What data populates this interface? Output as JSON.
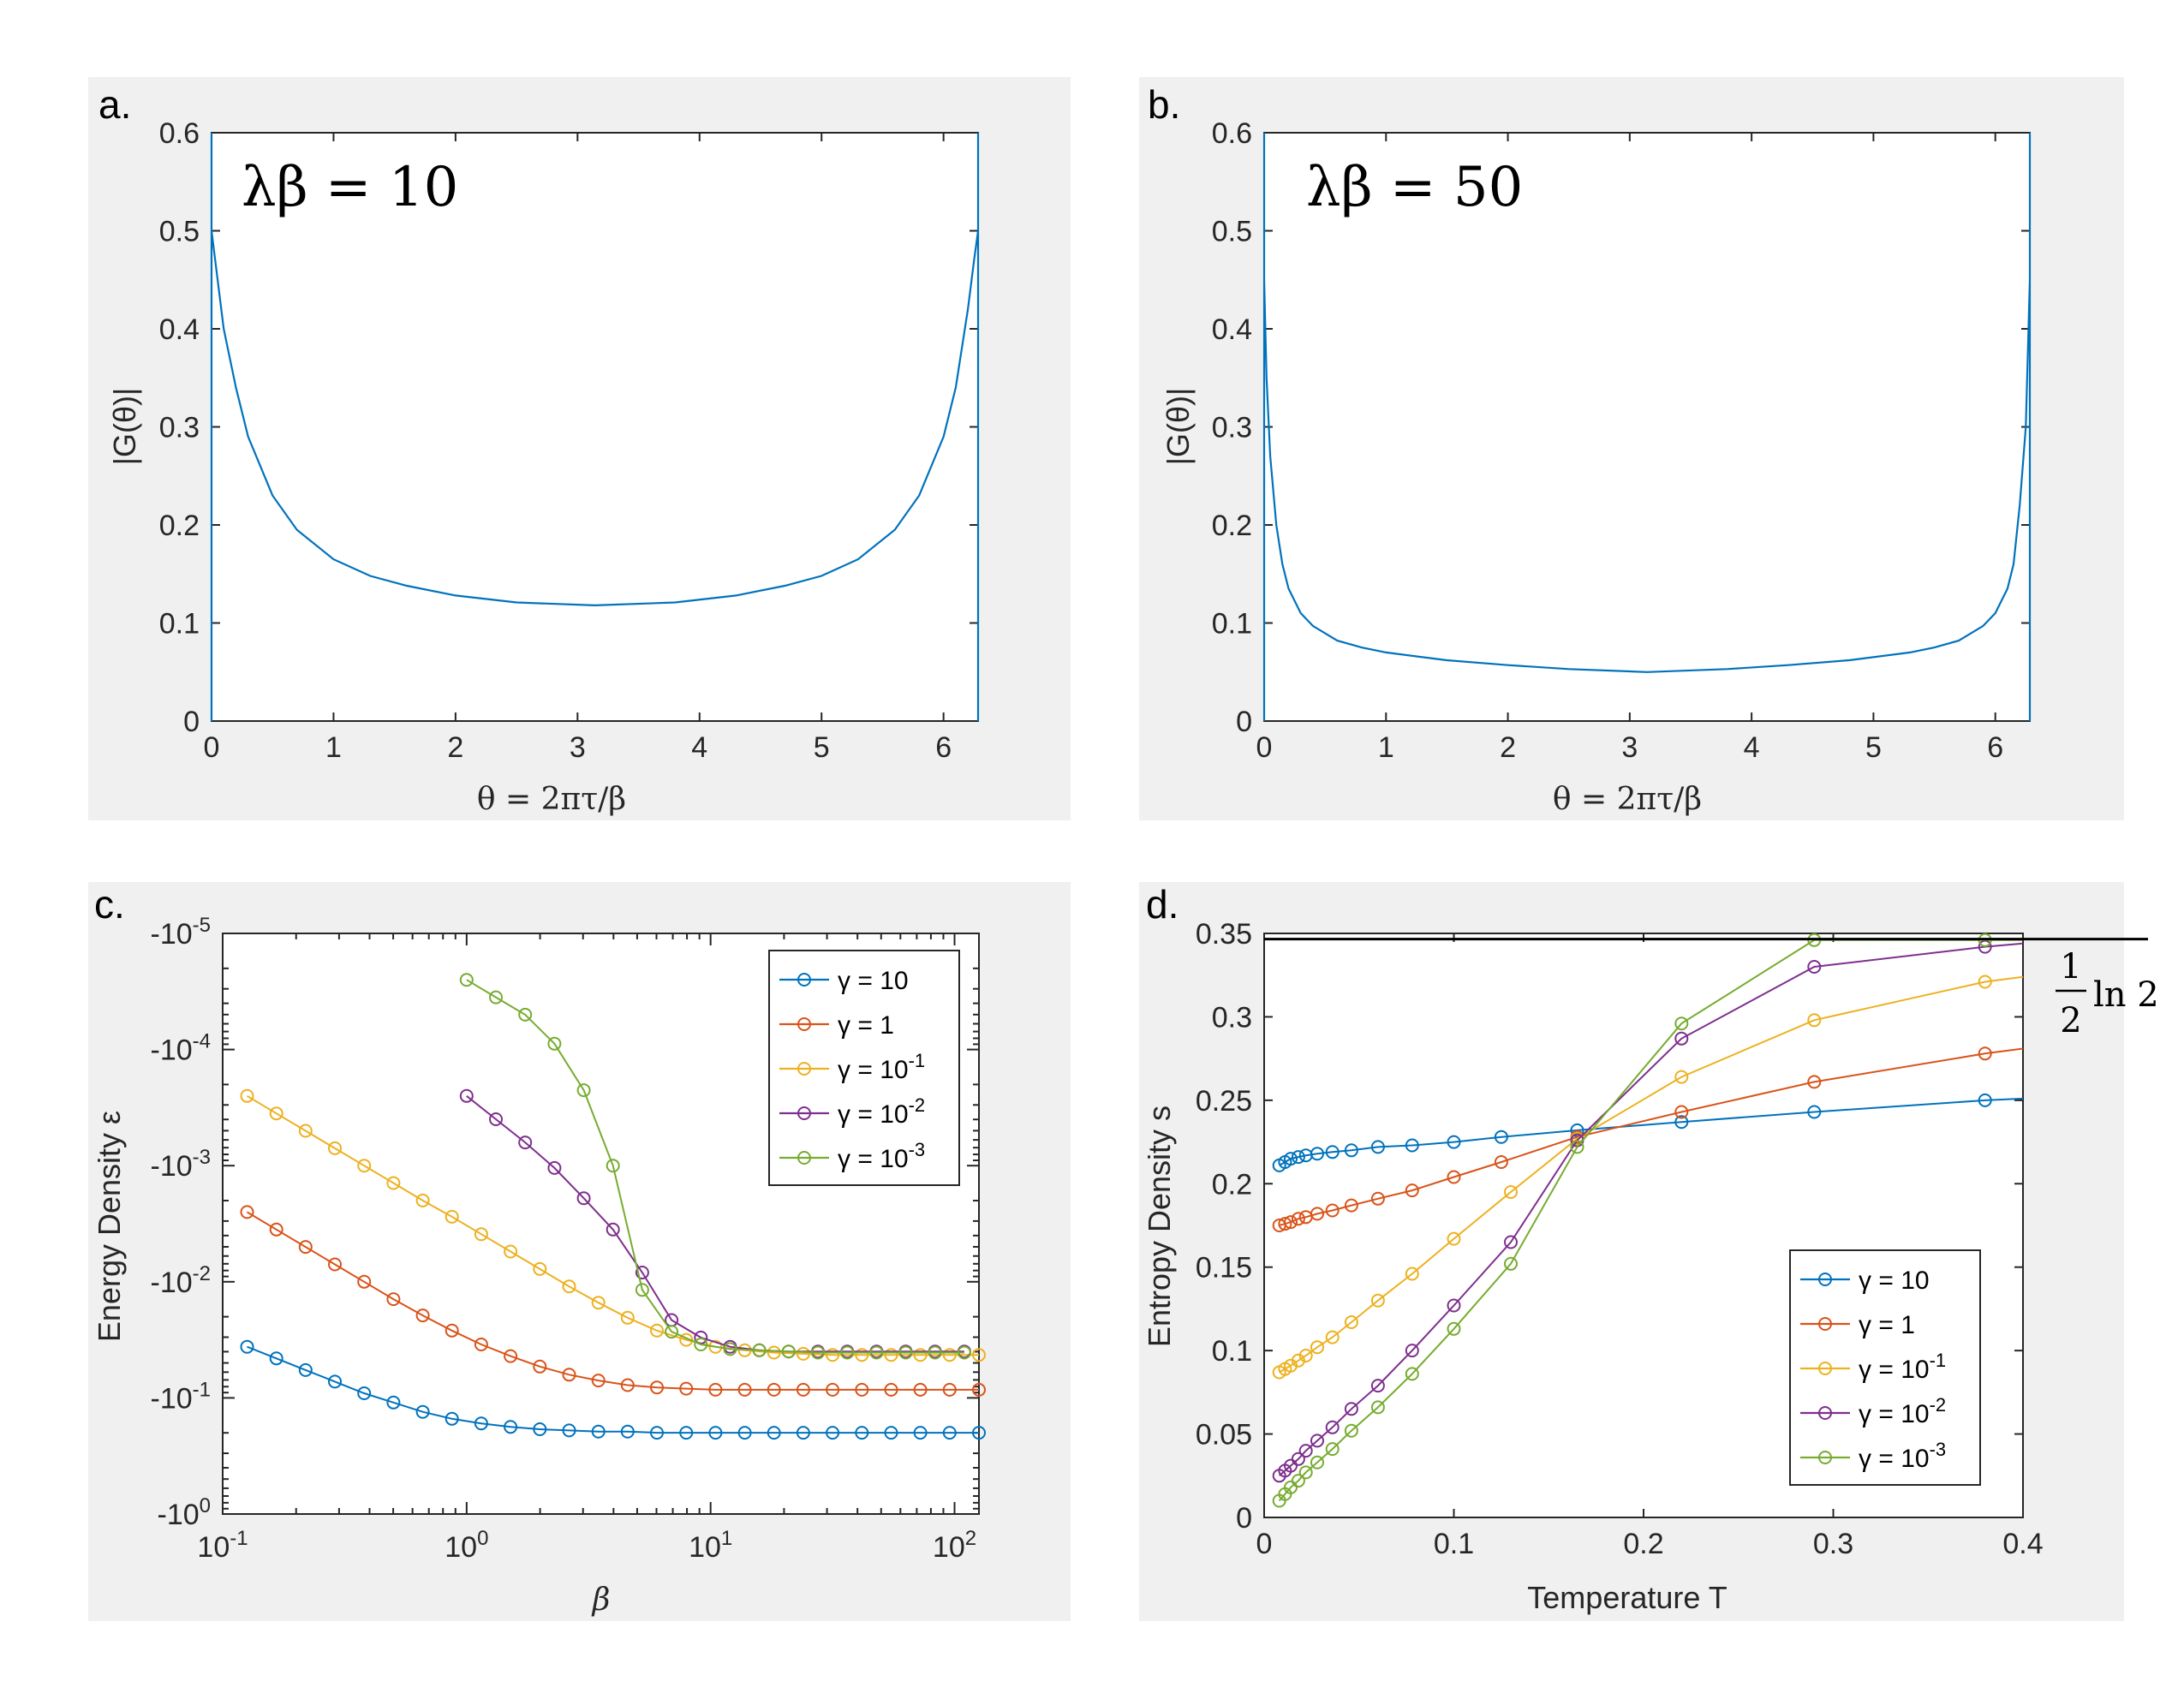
{
  "panels": {
    "a": {
      "label": "a.",
      "annotation": "λβ = 10",
      "ylabel": "|G(θ)|",
      "xlabel": "θ = 2πτ/β"
    },
    "b": {
      "label": "b.",
      "annotation": "λβ = 50",
      "ylabel": "|G(θ)|",
      "xlabel": "θ = 2πτ/β"
    },
    "c": {
      "label": "c.",
      "ylabel": "Energy Density ε",
      "xlabel": "β"
    },
    "d": {
      "label": "d.",
      "ylabel": "Entropy Density s",
      "xlabel": "Temperature T",
      "hline_label_num": "1",
      "hline_label_den": "2",
      "hline_label_fn": "ln 2"
    }
  },
  "colors": {
    "blue": "#0072bd",
    "orange": "#d95319",
    "yellow": "#edb120",
    "purple": "#7e2f8e",
    "green": "#77ac30",
    "axis": "#262626",
    "bg": "#f0f0f0"
  },
  "chart_data": [
    {
      "id": "a",
      "type": "line",
      "title": "λβ = 10",
      "xlabel": "θ = 2πτ/β",
      "ylabel": "|G(θ)|",
      "xlim": [
        0,
        6.2832
      ],
      "ylim": [
        0,
        0.6
      ],
      "xticks": [
        0,
        1,
        2,
        3,
        4,
        5,
        6
      ],
      "yticks": [
        0,
        0.1,
        0.2,
        0.3,
        0.4,
        0.5,
        0.6
      ],
      "xtick_labels": [
        "0",
        "1",
        "2",
        "3",
        "4",
        "5",
        "6"
      ],
      "ytick_labels": [
        "0",
        "0.1",
        "0.2",
        "0.3",
        "0.4",
        "0.5",
        "0.6"
      ],
      "series": [
        {
          "name": "|G(θ)|",
          "color": "#0072bd",
          "x": [
            0,
            0.05,
            0.1,
            0.2,
            0.3,
            0.5,
            0.7,
            1.0,
            1.3,
            1.6,
            2.0,
            2.5,
            3.1416,
            3.8,
            4.3,
            4.7,
            5.0,
            5.3,
            5.6,
            5.8,
            6.0,
            6.1,
            6.2,
            6.25,
            6.2832
          ],
          "y": [
            0.5,
            0.45,
            0.4,
            0.34,
            0.29,
            0.23,
            0.195,
            0.165,
            0.148,
            0.138,
            0.128,
            0.121,
            0.118,
            0.121,
            0.128,
            0.138,
            0.148,
            0.165,
            0.195,
            0.23,
            0.29,
            0.34,
            0.42,
            0.47,
            0.5
          ]
        }
      ]
    },
    {
      "id": "b",
      "type": "line",
      "title": "λβ = 50",
      "xlabel": "θ = 2πτ/β",
      "ylabel": "|G(θ)|",
      "xlim": [
        0,
        6.2832
      ],
      "ylim": [
        0,
        0.6
      ],
      "xticks": [
        0,
        1,
        2,
        3,
        4,
        5,
        6
      ],
      "yticks": [
        0,
        0.1,
        0.2,
        0.3,
        0.4,
        0.5,
        0.6
      ],
      "xtick_labels": [
        "0",
        "1",
        "2",
        "3",
        "4",
        "5",
        "6"
      ],
      "ytick_labels": [
        "0",
        "0.1",
        "0.2",
        "0.3",
        "0.4",
        "0.5",
        "0.6"
      ],
      "series": [
        {
          "name": "|G(θ)|",
          "color": "#0072bd",
          "x": [
            0,
            0.02,
            0.05,
            0.1,
            0.15,
            0.2,
            0.3,
            0.4,
            0.6,
            0.8,
            1.0,
            1.5,
            2.0,
            2.5,
            3.1416,
            3.8,
            4.3,
            4.8,
            5.3,
            5.5,
            5.7,
            5.9,
            6.0,
            6.1,
            6.15,
            6.2,
            6.25,
            6.2832
          ],
          "y": [
            0.45,
            0.35,
            0.27,
            0.2,
            0.16,
            0.135,
            0.11,
            0.097,
            0.082,
            0.075,
            0.07,
            0.062,
            0.057,
            0.053,
            0.05,
            0.053,
            0.057,
            0.062,
            0.07,
            0.075,
            0.082,
            0.097,
            0.11,
            0.135,
            0.16,
            0.22,
            0.3,
            0.45
          ]
        }
      ]
    },
    {
      "id": "c",
      "type": "line",
      "xscale": "log",
      "xlabel": "β",
      "ylabel": "Energy Density ε",
      "xlim_log10": [
        -1,
        2.1
      ],
      "ylim_log10_magnitude": [
        -5,
        0
      ],
      "xtick_exponents": [
        -1,
        0,
        1,
        2
      ],
      "ytick_labels": [
        "-10^-5",
        "-10^-4",
        "-10^-3",
        "-10^-2",
        "-10^-1",
        "-10^0"
      ],
      "legend_position": "top-right",
      "series": [
        {
          "name": "γ = 10",
          "legend_base": "γ = 10",
          "legend_exp": "",
          "color": "#0072bd",
          "log10_beta": [
            -0.9,
            -0.78,
            -0.66,
            -0.54,
            -0.42,
            -0.3,
            -0.18,
            -0.06,
            0.06,
            0.18,
            0.3,
            0.42,
            0.54,
            0.66,
            0.78,
            0.9,
            1.02,
            1.14,
            1.26,
            1.38,
            1.5,
            1.62,
            1.74,
            1.86,
            1.98,
            2.1
          ],
          "log10_abs_energy": [
            -1.44,
            -1.34,
            -1.24,
            -1.14,
            -1.04,
            -0.96,
            -0.88,
            -0.82,
            -0.78,
            -0.75,
            -0.73,
            -0.72,
            -0.71,
            -0.71,
            -0.7,
            -0.7,
            -0.7,
            -0.7,
            -0.7,
            -0.7,
            -0.7,
            -0.7,
            -0.7,
            -0.7,
            -0.7,
            -0.7
          ]
        },
        {
          "name": "γ = 1",
          "legend_base": "γ = 1",
          "legend_exp": "",
          "color": "#d95319",
          "log10_beta": [
            -0.9,
            -0.78,
            -0.66,
            -0.54,
            -0.42,
            -0.3,
            -0.18,
            -0.06,
            0.06,
            0.18,
            0.3,
            0.42,
            0.54,
            0.66,
            0.78,
            0.9,
            1.02,
            1.14,
            1.26,
            1.38,
            1.5,
            1.62,
            1.74,
            1.86,
            1.98,
            2.1
          ],
          "log10_abs_energy": [
            -2.6,
            -2.45,
            -2.3,
            -2.15,
            -2.0,
            -1.85,
            -1.71,
            -1.58,
            -1.46,
            -1.36,
            -1.27,
            -1.2,
            -1.15,
            -1.11,
            -1.09,
            -1.08,
            -1.07,
            -1.07,
            -1.07,
            -1.07,
            -1.07,
            -1.07,
            -1.07,
            -1.07,
            -1.07,
            -1.07
          ]
        },
        {
          "name": "γ = 10^-1",
          "legend_base": "γ = 10",
          "legend_exp": "-1",
          "color": "#edb120",
          "log10_beta": [
            -0.9,
            -0.78,
            -0.66,
            -0.54,
            -0.42,
            -0.3,
            -0.18,
            -0.06,
            0.06,
            0.18,
            0.3,
            0.42,
            0.54,
            0.66,
            0.78,
            0.9,
            1.02,
            1.14,
            1.26,
            1.38,
            1.5,
            1.62,
            1.74,
            1.86,
            1.98,
            2.1
          ],
          "log10_abs_energy": [
            -3.6,
            -3.45,
            -3.3,
            -3.15,
            -3.0,
            -2.85,
            -2.7,
            -2.56,
            -2.41,
            -2.26,
            -2.11,
            -1.96,
            -1.82,
            -1.69,
            -1.58,
            -1.5,
            -1.44,
            -1.41,
            -1.39,
            -1.38,
            -1.37,
            -1.37,
            -1.37,
            -1.37,
            -1.37,
            -1.37
          ]
        },
        {
          "name": "γ = 10^-2",
          "legend_base": "γ = 10",
          "legend_exp": "-2",
          "color": "#7e2f8e",
          "log10_beta": [
            0.0,
            0.12,
            0.24,
            0.36,
            0.48,
            0.6,
            0.72,
            0.84,
            0.96,
            1.08,
            1.2,
            1.32,
            1.44,
            1.56,
            1.68,
            1.8,
            1.92,
            2.04
          ],
          "log10_abs_energy": [
            -3.6,
            -3.4,
            -3.2,
            -2.98,
            -2.72,
            -2.45,
            -2.08,
            -1.67,
            -1.52,
            -1.44,
            -1.41,
            -1.4,
            -1.4,
            -1.4,
            -1.4,
            -1.4,
            -1.4,
            -1.4
          ]
        },
        {
          "name": "γ = 10^-3",
          "legend_base": "γ = 10",
          "legend_exp": "-3",
          "color": "#77ac30",
          "log10_beta": [
            0.0,
            0.12,
            0.24,
            0.36,
            0.48,
            0.6,
            0.72,
            0.84,
            0.96,
            1.08,
            1.2,
            1.32,
            1.44,
            1.56,
            1.68,
            1.8,
            1.92,
            2.04
          ],
          "log10_abs_energy": [
            -4.6,
            -4.45,
            -4.3,
            -4.05,
            -3.65,
            -3.0,
            -1.93,
            -1.57,
            -1.46,
            -1.42,
            -1.41,
            -1.4,
            -1.39,
            -1.39,
            -1.39,
            -1.39,
            -1.39,
            -1.39
          ]
        }
      ]
    },
    {
      "id": "d",
      "type": "line",
      "xlabel": "Temperature T",
      "ylabel": "Entropy Density s",
      "xlim": [
        0,
        0.4
      ],
      "ylim": [
        0,
        0.35
      ],
      "xticks": [
        0,
        0.1,
        0.2,
        0.3,
        0.4
      ],
      "yticks": [
        0,
        0.05,
        0.1,
        0.15,
        0.2,
        0.25,
        0.3,
        0.35
      ],
      "xtick_labels": [
        "0",
        "0.1",
        "0.2",
        "0.3",
        "0.4"
      ],
      "ytick_labels": [
        "0",
        "0.05",
        "0.1",
        "0.15",
        "0.2",
        "0.25",
        "0.3",
        "0.35"
      ],
      "reference_line": {
        "y": 0.3466,
        "label": "½ ln 2"
      },
      "legend_position": "bottom-right",
      "series": [
        {
          "name": "γ = 10",
          "legend_base": "γ = 10",
          "legend_exp": "",
          "color": "#0072bd",
          "x": [
            0.008,
            0.011,
            0.014,
            0.018,
            0.022,
            0.028,
            0.036,
            0.046,
            0.06,
            0.078,
            0.1,
            0.125,
            0.165,
            0.22,
            0.29,
            0.38,
            0.4
          ],
          "y": [
            0.211,
            0.213,
            0.215,
            0.216,
            0.217,
            0.218,
            0.219,
            0.22,
            0.222,
            0.223,
            0.225,
            0.228,
            0.232,
            0.237,
            0.243,
            0.25,
            0.251
          ]
        },
        {
          "name": "γ = 1",
          "legend_base": "γ = 1",
          "legend_exp": "",
          "color": "#d95319",
          "x": [
            0.008,
            0.011,
            0.014,
            0.018,
            0.022,
            0.028,
            0.036,
            0.046,
            0.06,
            0.078,
            0.1,
            0.125,
            0.165,
            0.22,
            0.29,
            0.38,
            0.4
          ],
          "y": [
            0.175,
            0.176,
            0.177,
            0.179,
            0.18,
            0.182,
            0.184,
            0.187,
            0.191,
            0.196,
            0.204,
            0.213,
            0.228,
            0.243,
            0.261,
            0.278,
            0.281
          ]
        },
        {
          "name": "γ = 10^-1",
          "legend_base": "γ = 10",
          "legend_exp": "-1",
          "color": "#edb120",
          "x": [
            0.008,
            0.011,
            0.014,
            0.018,
            0.022,
            0.028,
            0.036,
            0.046,
            0.06,
            0.078,
            0.1,
            0.13,
            0.165,
            0.22,
            0.29,
            0.38,
            0.4
          ],
          "y": [
            0.087,
            0.089,
            0.091,
            0.094,
            0.097,
            0.102,
            0.108,
            0.117,
            0.13,
            0.146,
            0.167,
            0.195,
            0.227,
            0.264,
            0.298,
            0.321,
            0.324
          ]
        },
        {
          "name": "γ = 10^-2",
          "legend_base": "γ = 10",
          "legend_exp": "-2",
          "color": "#7e2f8e",
          "x": [
            0.008,
            0.011,
            0.014,
            0.018,
            0.022,
            0.028,
            0.036,
            0.046,
            0.06,
            0.078,
            0.1,
            0.13,
            0.165,
            0.22,
            0.29,
            0.38,
            0.4
          ],
          "y": [
            0.025,
            0.028,
            0.031,
            0.035,
            0.04,
            0.046,
            0.054,
            0.065,
            0.079,
            0.1,
            0.127,
            0.165,
            0.226,
            0.287,
            0.33,
            0.342,
            0.344
          ]
        },
        {
          "name": "γ = 10^-3",
          "legend_base": "γ = 10",
          "legend_exp": "-3",
          "color": "#77ac30",
          "x": [
            0.008,
            0.011,
            0.014,
            0.018,
            0.022,
            0.028,
            0.036,
            0.046,
            0.06,
            0.078,
            0.1,
            0.13,
            0.165,
            0.22,
            0.29,
            0.38,
            0.4
          ],
          "y": [
            0.01,
            0.014,
            0.018,
            0.022,
            0.027,
            0.033,
            0.041,
            0.052,
            0.066,
            0.086,
            0.113,
            0.152,
            0.222,
            0.296,
            0.346,
            0.346,
            0.346
          ]
        }
      ]
    }
  ]
}
